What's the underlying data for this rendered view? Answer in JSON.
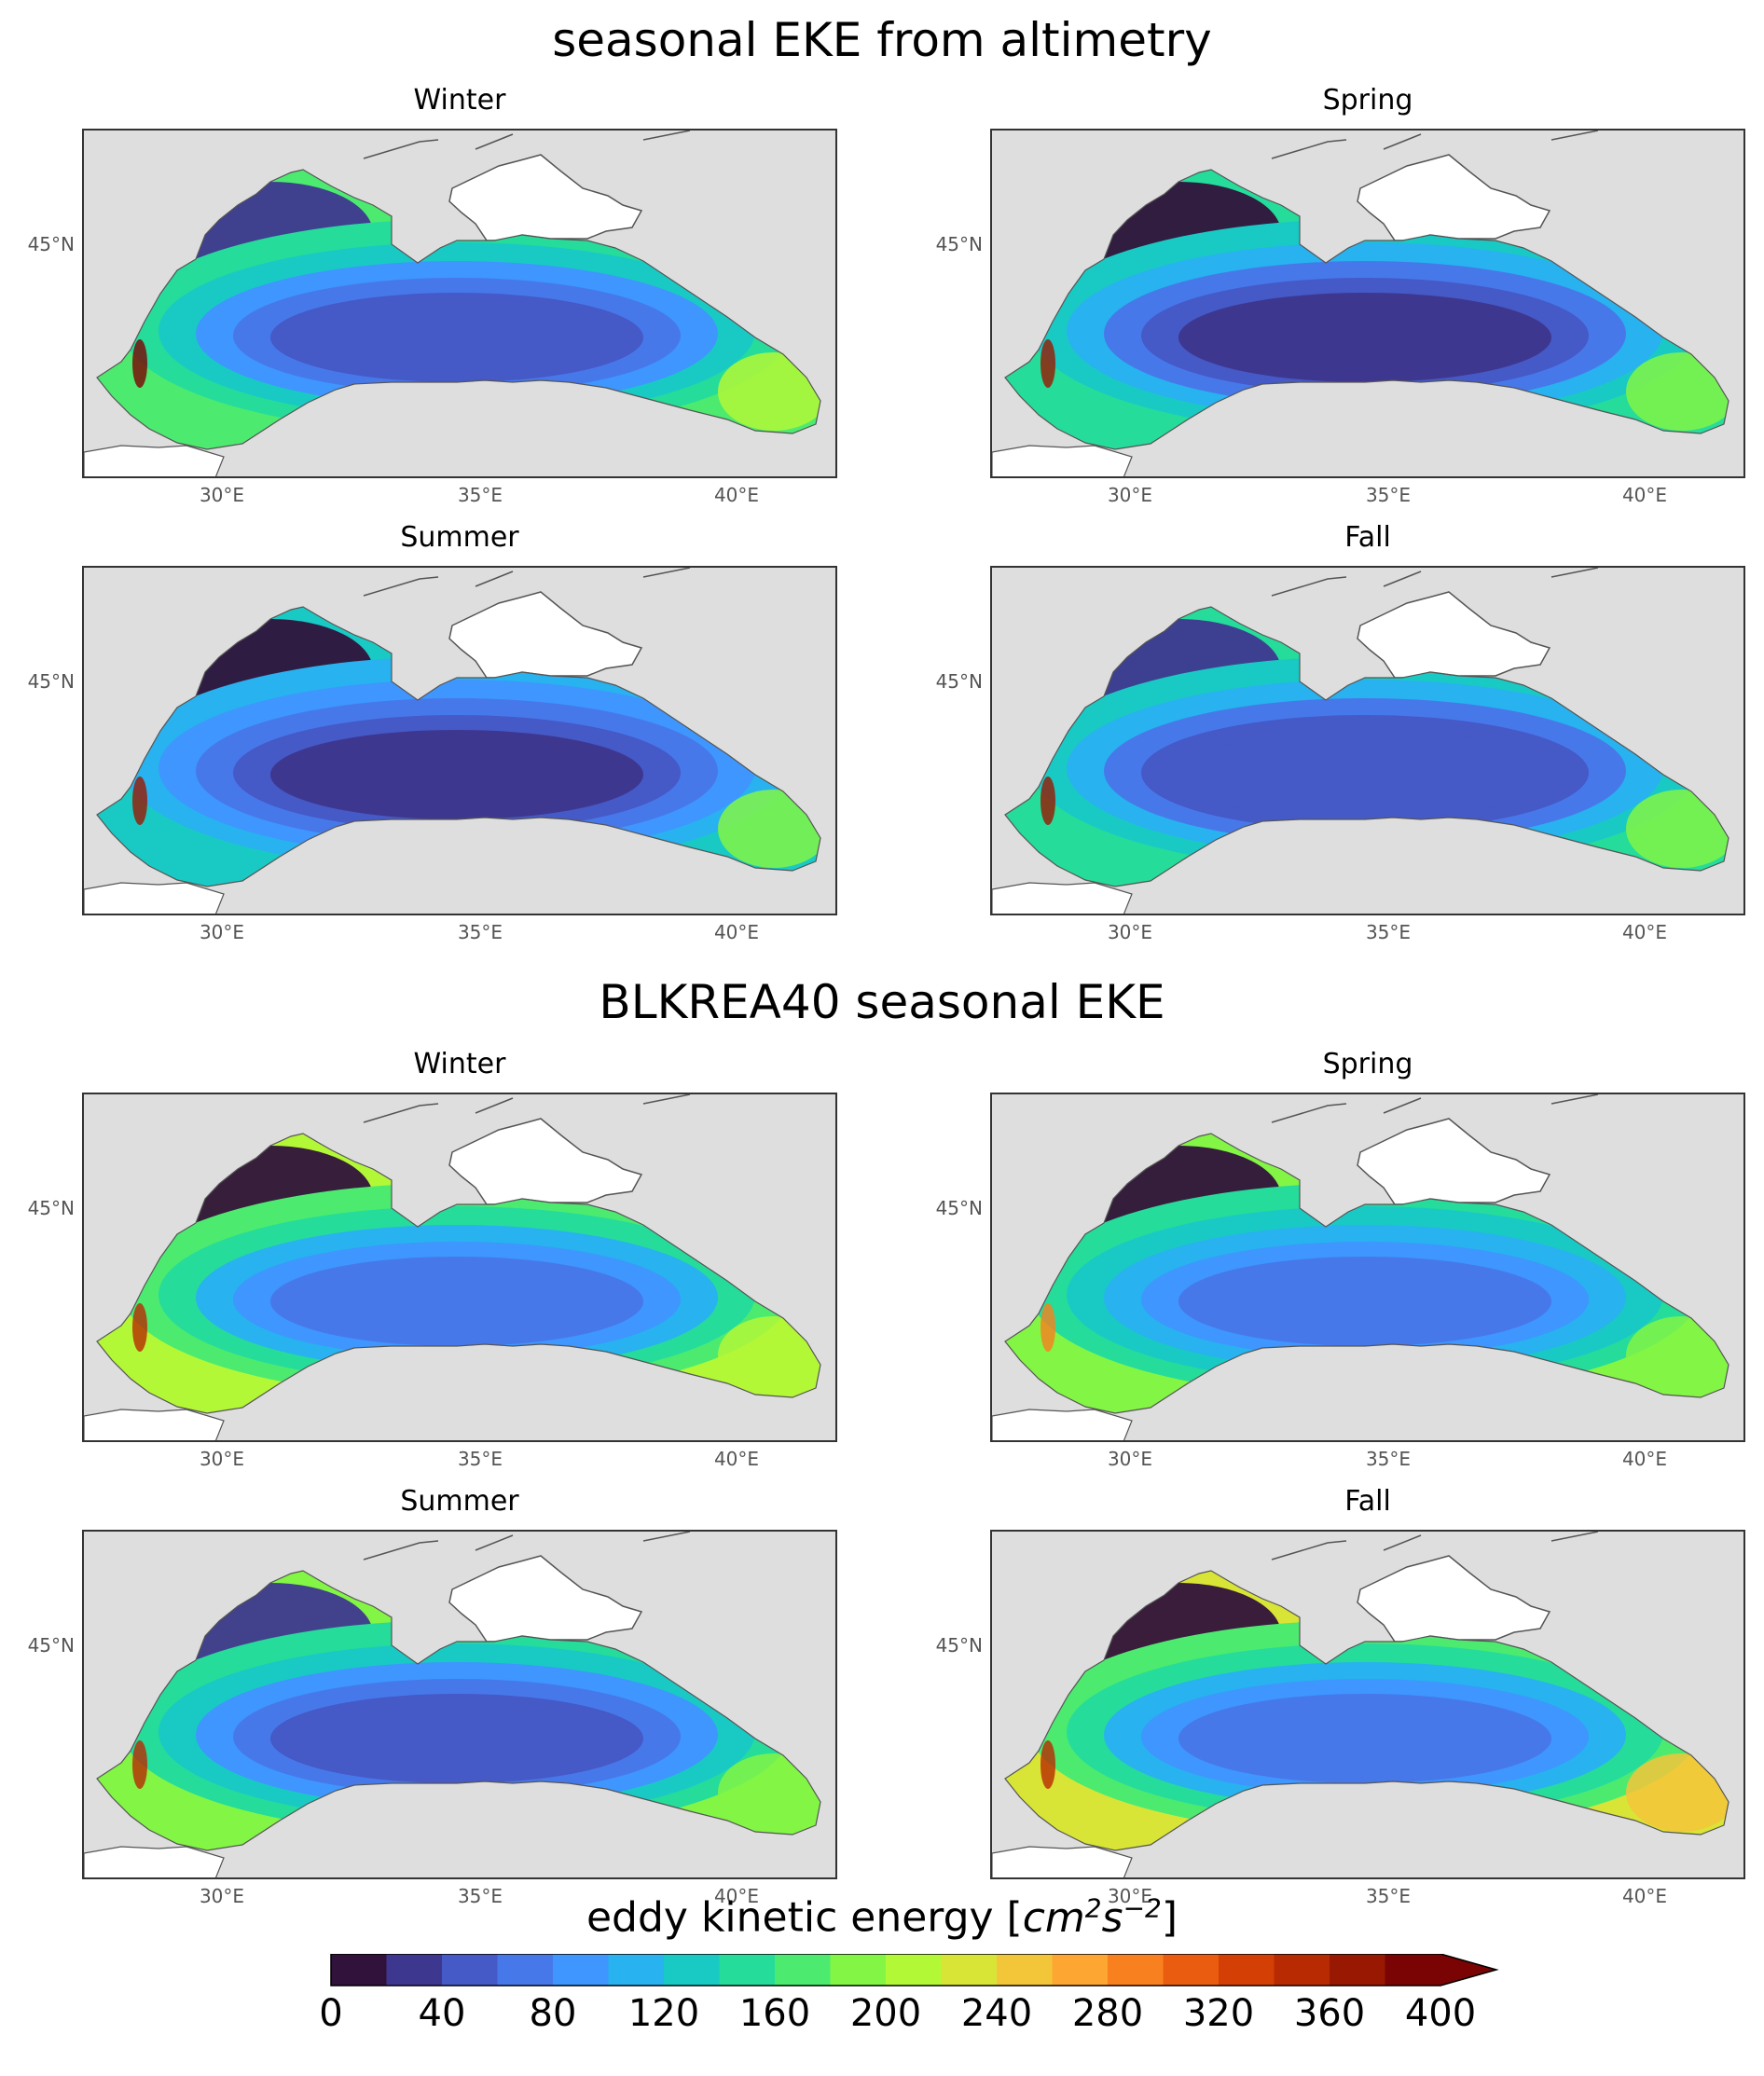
{
  "figure": {
    "sections": [
      {
        "title": "seasonal EKE from altimetry",
        "kind": "altimetry",
        "panels": [
          {
            "title": "Winter",
            "season": "winter"
          },
          {
            "title": "Spring",
            "season": "spring"
          },
          {
            "title": "Summer",
            "season": "summer"
          },
          {
            "title": "Fall",
            "season": "fall"
          }
        ]
      },
      {
        "title": "BLKREA40 seasonal EKE",
        "kind": "model",
        "panels": [
          {
            "title": "Winter",
            "season": "winter"
          },
          {
            "title": "Spring",
            "season": "spring"
          },
          {
            "title": "Summer",
            "season": "summer"
          },
          {
            "title": "Fall",
            "season": "fall"
          }
        ]
      }
    ],
    "axes": {
      "lat_label": "45°N",
      "lon_labels": [
        "30°E",
        "35°E",
        "40°E"
      ]
    },
    "colorbar": {
      "label": "eddy kinetic energy [cm²s⁻²]",
      "label_parts": {
        "prefix": "eddy kinetic energy [",
        "cm": "cm",
        "cm_exp": "2",
        "s": "s",
        "s_exp": "−2",
        "suffix": "]"
      },
      "ticks": [
        "0",
        "40",
        "80",
        "120",
        "160",
        "200",
        "240",
        "280",
        "320",
        "360",
        "400"
      ],
      "min": 0,
      "max": 400,
      "step": 20,
      "extend": "max",
      "colors": [
        "#30123b",
        "#3e378f",
        "#4559c7",
        "#4778ea",
        "#3e96fe",
        "#28b2ef",
        "#19cac4",
        "#25dc9b",
        "#4ceb70",
        "#83f545",
        "#b3f836",
        "#d9e536",
        "#f3c63a",
        "#fda631",
        "#f9801e",
        "#ea5d10",
        "#d43f05",
        "#b82a02",
        "#981801",
        "#7a0403"
      ],
      "extend_color": "#7a0403"
    },
    "colors": {
      "land": "#ffffff",
      "nodata": "#dedede",
      "coast": "#555555"
    }
  }
}
